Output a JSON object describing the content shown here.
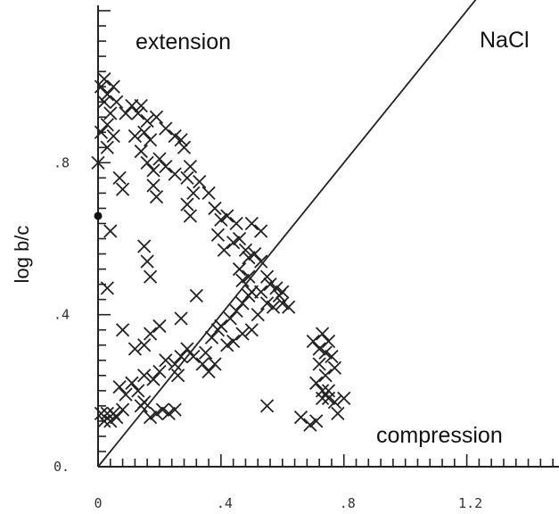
{
  "chart_data": {
    "type": "scatter",
    "title": "",
    "xlabel": "",
    "ylabel": "log b/c",
    "xlim": [
      0,
      1.5
    ],
    "ylim": [
      0,
      1.2
    ],
    "x_tick_labels": [
      {
        "value": 0,
        "label": "0"
      },
      {
        "value": 0.4,
        "label": ".4"
      },
      {
        "value": 0.8,
        "label": ".8"
      },
      {
        "value": 1.2,
        "label": "1.2"
      }
    ],
    "y_tick_labels": [
      {
        "value": 0,
        "label": "0."
      },
      {
        "value": 0.4,
        "label": ".4"
      },
      {
        "value": 0.8,
        "label": ".8"
      }
    ],
    "reference_line": {
      "label": "NaCl",
      "slope": 1,
      "intercept": 0,
      "x_range": [
        0,
        1.3
      ]
    },
    "annotations": [
      {
        "text": "extension",
        "x": 0.12,
        "y": 1.12
      },
      {
        "text": "NaCl",
        "x": 1.26,
        "y": 1.12
      },
      {
        "text": "compression",
        "x": 0.92,
        "y": 0.08
      }
    ],
    "special_points": [
      {
        "x": 0.0,
        "y": 0.66,
        "marker": "dot"
      }
    ],
    "series": [
      {
        "marker": "x",
        "points": [
          [
            0.01,
            1.0
          ],
          [
            0.02,
            1.02
          ],
          [
            0.03,
            0.98
          ],
          [
            0.05,
            1.0
          ],
          [
            0.02,
            0.96
          ],
          [
            0.04,
            0.93
          ],
          [
            0.06,
            0.96
          ],
          [
            0.03,
            0.9
          ],
          [
            0.01,
            0.88
          ],
          [
            0.05,
            0.87
          ],
          [
            0.03,
            0.84
          ],
          [
            0.0,
            0.8
          ],
          [
            0.09,
            0.93
          ],
          [
            0.11,
            0.95
          ],
          [
            0.13,
            0.93
          ],
          [
            0.14,
            0.95
          ],
          [
            0.16,
            0.91
          ],
          [
            0.15,
            0.88
          ],
          [
            0.12,
            0.87
          ],
          [
            0.17,
            0.86
          ],
          [
            0.19,
            0.92
          ],
          [
            0.22,
            0.89
          ],
          [
            0.25,
            0.87
          ],
          [
            0.27,
            0.86
          ],
          [
            0.28,
            0.84
          ],
          [
            0.14,
            0.83
          ],
          [
            0.16,
            0.8
          ],
          [
            0.18,
            0.78
          ],
          [
            0.2,
            0.81
          ],
          [
            0.22,
            0.79
          ],
          [
            0.25,
            0.77
          ],
          [
            0.29,
            0.76
          ],
          [
            0.3,
            0.79
          ],
          [
            0.33,
            0.75
          ],
          [
            0.36,
            0.72
          ],
          [
            0.31,
            0.72
          ],
          [
            0.29,
            0.69
          ],
          [
            0.07,
            0.76
          ],
          [
            0.08,
            0.73
          ],
          [
            0.18,
            0.74
          ],
          [
            0.19,
            0.71
          ],
          [
            0.3,
            0.66
          ],
          [
            0.38,
            0.68
          ],
          [
            0.4,
            0.65
          ],
          [
            0.42,
            0.66
          ],
          [
            0.45,
            0.64
          ],
          [
            0.5,
            0.64
          ],
          [
            0.53,
            0.62
          ],
          [
            0.39,
            0.61
          ],
          [
            0.41,
            0.57
          ],
          [
            0.44,
            0.59
          ],
          [
            0.46,
            0.6
          ],
          [
            0.48,
            0.57
          ],
          [
            0.49,
            0.55
          ],
          [
            0.51,
            0.56
          ],
          [
            0.53,
            0.54
          ],
          [
            0.55,
            0.5
          ],
          [
            0.56,
            0.48
          ],
          [
            0.58,
            0.47
          ],
          [
            0.59,
            0.45
          ],
          [
            0.46,
            0.52
          ],
          [
            0.47,
            0.49
          ],
          [
            0.49,
            0.5
          ],
          [
            0.5,
            0.46
          ],
          [
            0.53,
            0.46
          ],
          [
            0.55,
            0.43
          ],
          [
            0.57,
            0.42
          ],
          [
            0.6,
            0.43
          ],
          [
            0.62,
            0.42
          ],
          [
            0.6,
            0.46
          ],
          [
            0.04,
            0.62
          ],
          [
            0.15,
            0.58
          ],
          [
            0.16,
            0.54
          ],
          [
            0.17,
            0.5
          ],
          [
            0.03,
            0.47
          ],
          [
            0.08,
            0.36
          ],
          [
            0.32,
            0.45
          ],
          [
            0.27,
            0.39
          ],
          [
            0.2,
            0.37
          ],
          [
            0.17,
            0.35
          ],
          [
            0.15,
            0.32
          ],
          [
            0.12,
            0.31
          ],
          [
            0.4,
            0.37
          ],
          [
            0.43,
            0.39
          ],
          [
            0.45,
            0.41
          ],
          [
            0.47,
            0.43
          ],
          [
            0.49,
            0.45
          ],
          [
            0.37,
            0.34
          ],
          [
            0.39,
            0.36
          ],
          [
            0.42,
            0.32
          ],
          [
            0.44,
            0.33
          ],
          [
            0.47,
            0.35
          ],
          [
            0.5,
            0.36
          ],
          [
            0.52,
            0.4
          ],
          [
            0.35,
            0.3
          ],
          [
            0.07,
            0.21
          ],
          [
            0.09,
            0.19
          ],
          [
            0.11,
            0.22
          ],
          [
            0.13,
            0.2
          ],
          [
            0.15,
            0.24
          ],
          [
            0.18,
            0.23
          ],
          [
            0.2,
            0.25
          ],
          [
            0.22,
            0.28
          ],
          [
            0.25,
            0.27
          ],
          [
            0.27,
            0.29
          ],
          [
            0.29,
            0.31
          ],
          [
            0.31,
            0.29
          ],
          [
            0.26,
            0.24
          ],
          [
            0.01,
            0.14
          ],
          [
            0.02,
            0.12
          ],
          [
            0.03,
            0.14
          ],
          [
            0.04,
            0.12
          ],
          [
            0.05,
            0.14
          ],
          [
            0.06,
            0.13
          ],
          [
            0.08,
            0.15
          ],
          [
            0.14,
            0.16
          ],
          [
            0.15,
            0.17
          ],
          [
            0.17,
            0.13
          ],
          [
            0.19,
            0.14
          ],
          [
            0.21,
            0.15
          ],
          [
            0.23,
            0.14
          ],
          [
            0.25,
            0.15
          ],
          [
            0.34,
            0.27
          ],
          [
            0.36,
            0.25
          ],
          [
            0.38,
            0.27
          ],
          [
            0.55,
            0.16
          ],
          [
            0.66,
            0.13
          ],
          [
            0.69,
            0.11
          ],
          [
            0.71,
            0.12
          ],
          [
            0.73,
            0.18
          ],
          [
            0.75,
            0.2
          ],
          [
            0.77,
            0.17
          ],
          [
            0.78,
            0.14
          ],
          [
            0.8,
            0.18
          ],
          [
            0.7,
            0.33
          ],
          [
            0.72,
            0.31
          ],
          [
            0.74,
            0.3
          ],
          [
            0.73,
            0.35
          ],
          [
            0.75,
            0.33
          ],
          [
            0.76,
            0.29
          ],
          [
            0.72,
            0.27
          ],
          [
            0.74,
            0.24
          ],
          [
            0.77,
            0.26
          ],
          [
            0.71,
            0.22
          ],
          [
            0.73,
            0.2
          ],
          [
            0.75,
            0.18
          ]
        ]
      }
    ]
  }
}
